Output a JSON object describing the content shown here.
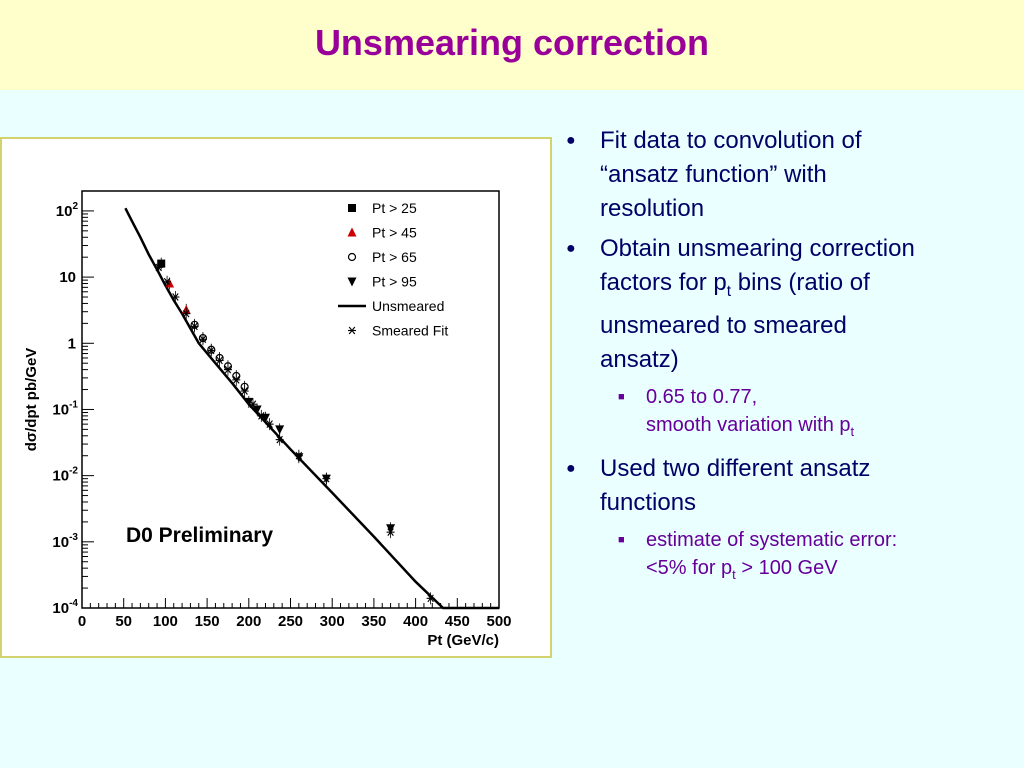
{
  "slide": {
    "title": "Unsmearing correction"
  },
  "bullets": [
    {
      "lines": [
        "Fit data to convolution of",
        "“ansatz function” with",
        "resolution"
      ]
    },
    {
      "line1": "Obtain unsmearing correction",
      "line2_pre": "factors for p",
      "line2_sub": "t",
      "line2_post": " bins (ratio of",
      "line3": "unsmeared to smeared",
      "line4": "ansatz)",
      "sub": {
        "line1": "0.65 to 0.77,",
        "line2_pre": "smooth variation with p",
        "line2_sub": "t"
      }
    },
    {
      "lines": [
        "Used two different ansatz",
        "functions"
      ],
      "sub": {
        "line1": "estimate of systematic error:",
        "line2_pre": "<5% for p",
        "line2_sub": "t",
        "line2_post": " > 100 GeV"
      }
    }
  ],
  "chart_data": {
    "type": "scatter",
    "xlabel": "Pt (GeV/c)",
    "ylabel": "dσ/dpt pb/GeV",
    "annotation": "D0 Preliminary",
    "xlim": [
      0,
      500
    ],
    "ylim": [
      0.0001,
      200
    ],
    "yscale": "log",
    "x_ticks": [
      "0",
      "50",
      "100",
      "150",
      "200",
      "250",
      "300",
      "350",
      "400",
      "450",
      "500"
    ],
    "y_ticks": [
      {
        "base": "10",
        "exp": "2",
        "value": 100
      },
      {
        "base": "10",
        "exp": "",
        "value": 10
      },
      {
        "base": "1",
        "exp": "",
        "value": 1
      },
      {
        "base": "10",
        "exp": "-1",
        "value": 0.1
      },
      {
        "base": "10",
        "exp": "-2",
        "value": 0.01
      },
      {
        "base": "10",
        "exp": "-3",
        "value": 0.001
      },
      {
        "base": "10",
        "exp": "-4",
        "value": 0.0001
      }
    ],
    "legend_position": "top-right",
    "series": [
      {
        "name": "Pt > 25",
        "marker": "square",
        "color": "#000000",
        "points": [
          [
            95,
            16
          ]
        ]
      },
      {
        "name": "Pt > 45",
        "marker": "triangle-up",
        "color": "#cc0000",
        "points": [
          [
            105,
            8.0
          ],
          [
            125,
            3.2
          ]
        ]
      },
      {
        "name": "Pt > 65",
        "marker": "circle-open",
        "color": "#000000",
        "points": [
          [
            135,
            1.9
          ],
          [
            145,
            1.2
          ],
          [
            155,
            0.8
          ],
          [
            165,
            0.6
          ],
          [
            175,
            0.45
          ],
          [
            185,
            0.32
          ],
          [
            195,
            0.22
          ]
        ]
      },
      {
        "name": "Pt > 95",
        "marker": "triangle-down",
        "color": "#000000",
        "points": [
          [
            200,
            0.13
          ],
          [
            210,
            0.1
          ],
          [
            220,
            0.075
          ],
          [
            237,
            0.05
          ],
          [
            260,
            0.019
          ],
          [
            293,
            0.009
          ],
          [
            370,
            0.0016
          ]
        ]
      },
      {
        "name": "Unsmeared",
        "marker": "line",
        "color": "#000000",
        "points": [
          [
            52,
            110
          ],
          [
            60,
            70
          ],
          [
            70,
            40
          ],
          [
            80,
            22
          ],
          [
            90,
            13
          ],
          [
            100,
            7.5
          ],
          [
            110,
            4.5
          ],
          [
            120,
            2.8
          ],
          [
            140,
            1.0
          ],
          [
            160,
            0.5
          ],
          [
            180,
            0.25
          ],
          [
            200,
            0.12
          ],
          [
            250,
            0.025
          ],
          [
            300,
            0.0055
          ],
          [
            350,
            0.0012
          ],
          [
            400,
            0.00025
          ],
          [
            433,
            0.0001
          ],
          [
            500,
            0.0001
          ]
        ]
      },
      {
        "name": "Smeared Fit",
        "marker": "asterisk",
        "color": "#000000",
        "points": [
          [
            92,
            14
          ],
          [
            102,
            8.5
          ],
          [
            112,
            5.0
          ],
          [
            125,
            2.8
          ],
          [
            135,
            1.8
          ],
          [
            145,
            1.15
          ],
          [
            155,
            0.78
          ],
          [
            165,
            0.55
          ],
          [
            175,
            0.4
          ],
          [
            185,
            0.28
          ],
          [
            195,
            0.19
          ],
          [
            205,
            0.12
          ],
          [
            215,
            0.08
          ],
          [
            225,
            0.06
          ],
          [
            237,
            0.035
          ],
          [
            260,
            0.02
          ],
          [
            293,
            0.009
          ],
          [
            370,
            0.0014
          ],
          [
            418,
            0.00014
          ]
        ]
      }
    ]
  }
}
